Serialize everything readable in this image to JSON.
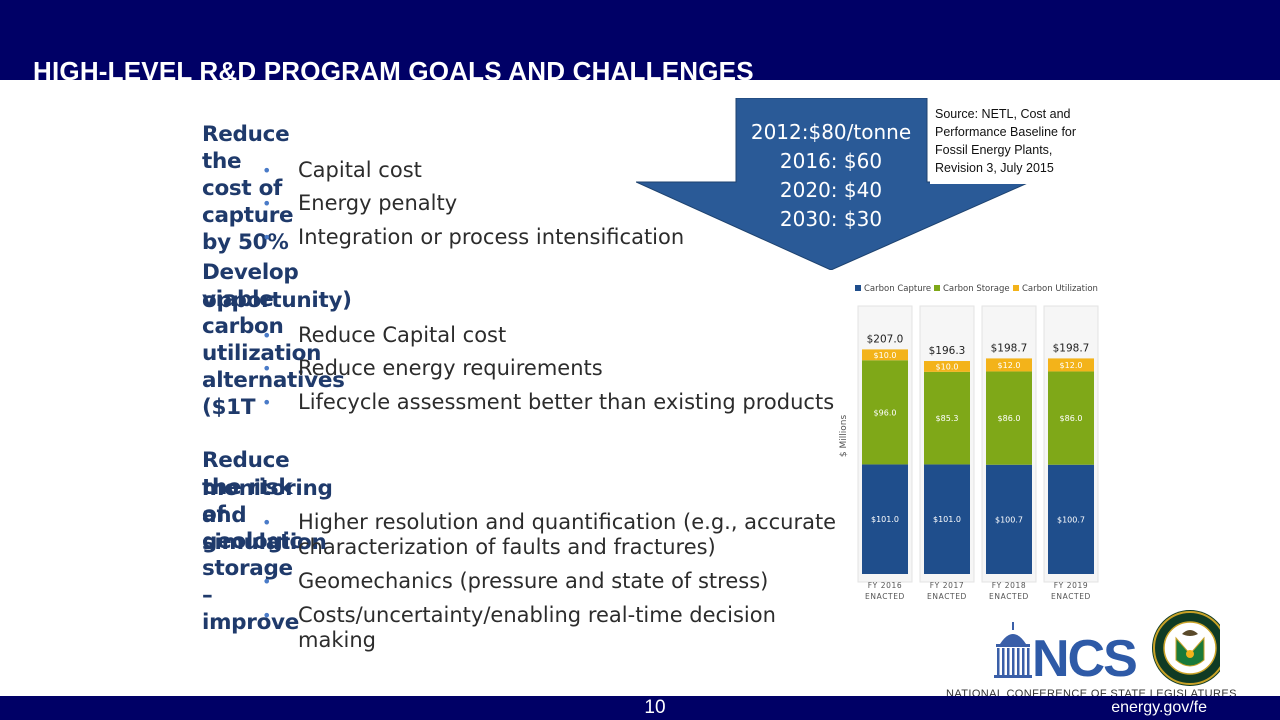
{
  "slide": {
    "title": "HIGH-LEVEL R&D PROGRAM GOALS AND CHALLENGES",
    "page_number": "10",
    "site_url": "energy.gov/fe"
  },
  "goals": [
    {
      "heading": "Reduce the cost of capture by 50%",
      "bullets": [
        "Capital cost",
        "Energy penalty",
        "Integration or process intensification"
      ]
    },
    {
      "heading_line1": "Develop viable carbon utilization alternatives ($1T",
      "heading_line2": "opportunity)",
      "bullets": [
        "Reduce Capital cost",
        "Reduce energy requirements",
        "Lifecycle assessment better than existing products"
      ]
    },
    {
      "heading_line1": "Reduce the risk of geologic storage – improve",
      "heading_line2": "monitoring and simulation",
      "bullets": [
        "Higher resolution and quantification (e.g., accurate characterization of faults and fractures)",
        "Geomechanics (pressure and state of stress)",
        "Costs/uncertainty/enabling real-time decision making"
      ]
    }
  ],
  "cost_targets": [
    "2012:$80/tonne",
    "2016: $60",
    "2020: $40",
    "2030: $30"
  ],
  "source_note": "Source: NETL, Cost and Performance Baseline for Fossil Energy Plants, Revision 3, July 2015",
  "logo": {
    "acronym": "NCS",
    "org_name": "NATIONAL CONFERENCE OF STATE LEGISLATURES",
    "seal_text": "DEPARTMENT OF ENERGY · UNITED STATES OF AMERICA"
  },
  "colors": {
    "band": "#000066",
    "arrow": "#2a5a97",
    "heading": "#1f3a6b",
    "capture": "#1f4e8c",
    "storage": "#7fa818",
    "utilization": "#f3b31a"
  },
  "chart_data": {
    "type": "bar",
    "stacked": true,
    "ylabel": "$ Millions",
    "categories": [
      "FY 2016 ENACTED",
      "FY 2017 ENACTED",
      "FY 2018 ENACTED",
      "FY 2019 ENACTED"
    ],
    "category_lines": [
      [
        "FY 2016",
        "ENACTED"
      ],
      [
        "FY 2017",
        "ENACTED"
      ],
      [
        "FY 2018",
        "ENACTED"
      ],
      [
        "FY 2019",
        "ENACTED"
      ]
    ],
    "series": [
      {
        "name": "Carbon Capture",
        "values": [
          101.0,
          101.0,
          100.7,
          100.7
        ],
        "labels": [
          "$101.0",
          "$101.0",
          "$100.7",
          "$100.7"
        ]
      },
      {
        "name": "Carbon Storage",
        "values": [
          96.0,
          85.3,
          86.0,
          86.0
        ],
        "labels": [
          "$96.0",
          "$85.3",
          "$86.0",
          "$86.0"
        ]
      },
      {
        "name": "Carbon Utilization",
        "values": [
          10.0,
          10.0,
          12.0,
          12.0
        ],
        "labels": [
          "$10.0",
          "$10.0",
          "$12.0",
          "$12.0"
        ]
      }
    ],
    "totals": [
      "$207.0",
      "$196.3",
      "$198.7",
      "$198.7"
    ],
    "ylim": [
      0,
      207
    ],
    "grid": false,
    "legend_position": "top"
  }
}
